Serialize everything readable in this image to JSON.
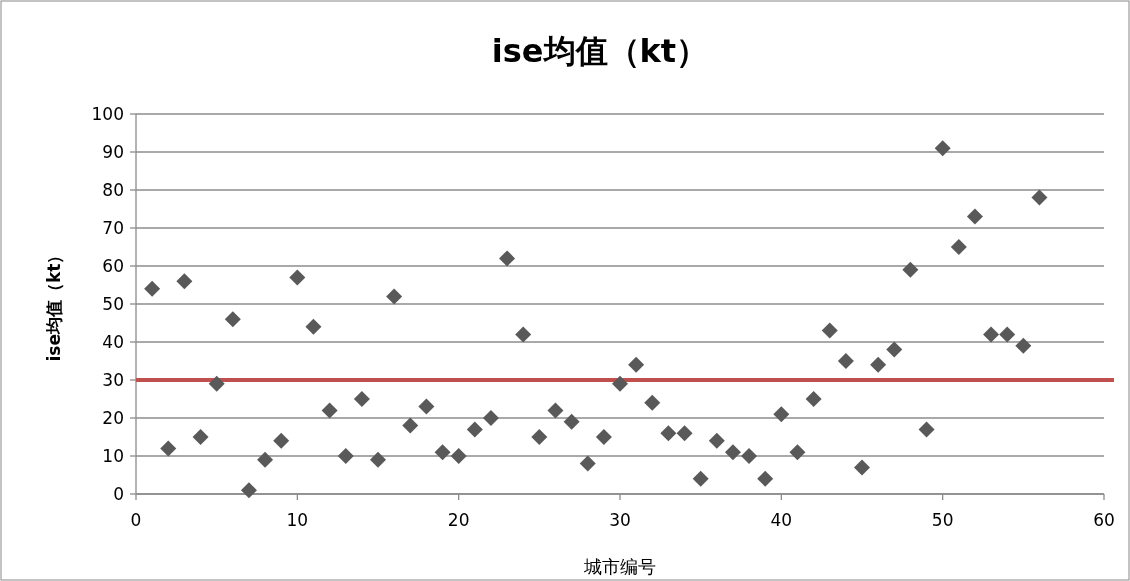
{
  "chart_data": {
    "type": "scatter",
    "title": "ise均值（kt）",
    "xlabel": "城市编号",
    "ylabel": "ise均值（kt）",
    "x": [
      1,
      2,
      3,
      4,
      5,
      6,
      7,
      8,
      9,
      10,
      11,
      12,
      13,
      14,
      15,
      16,
      17,
      18,
      19,
      20,
      21,
      22,
      23,
      24,
      25,
      26,
      27,
      28,
      29,
      30,
      31,
      32,
      33,
      34,
      35,
      36,
      37,
      38,
      39,
      40,
      41,
      42,
      43,
      44,
      45,
      46,
      47,
      48,
      49,
      50,
      51,
      52,
      53,
      54,
      55,
      56
    ],
    "series": [
      {
        "color": "#595959",
        "values": [
          54,
          12,
          56,
          15,
          29,
          46,
          1,
          9,
          14,
          57,
          44,
          22,
          10,
          25,
          9,
          52,
          18,
          23,
          11,
          10,
          17,
          20,
          62,
          42,
          15,
          22,
          19,
          8,
          15,
          29,
          34,
          24,
          16,
          16,
          4,
          14,
          11,
          10,
          4,
          21,
          11,
          25,
          43,
          35,
          7,
          34,
          38,
          59,
          17,
          91,
          65,
          73,
          42,
          42,
          39,
          78
        ]
      }
    ],
    "xlim": [
      0,
      60
    ],
    "xticks": [
      0,
      10,
      20,
      30,
      40,
      50,
      60
    ],
    "ylim": [
      0,
      100
    ],
    "yticks": [
      0,
      10,
      20,
      30,
      40,
      50,
      60,
      70,
      80,
      90,
      100
    ],
    "grid": "y",
    "marker": "diamond",
    "ref_lines": [
      {
        "axis": "y",
        "value": 30,
        "color": "#c0504d"
      }
    ]
  }
}
